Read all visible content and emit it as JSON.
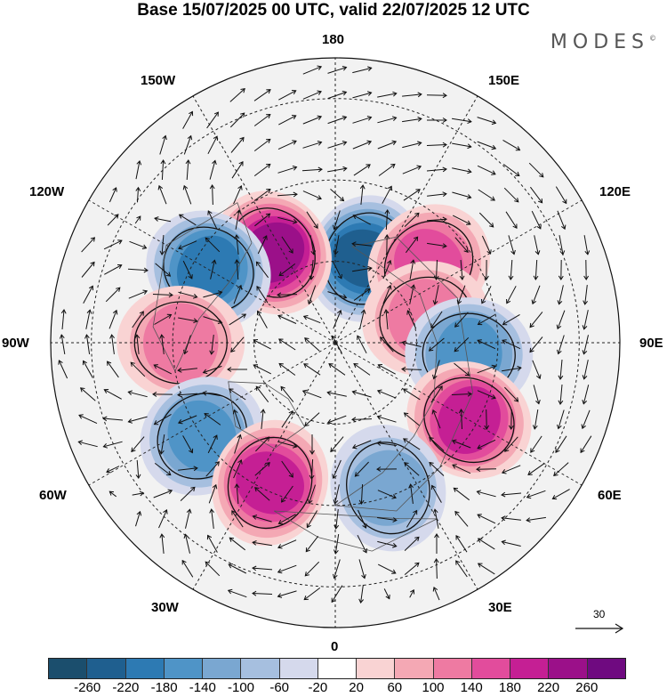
{
  "header": {
    "title": "Base 15/07/2025 00 UTC, valid 22/07/2025 12 UTC",
    "brand": "MODES"
  },
  "longitude_labels": {
    "top": "180",
    "bottom": "0",
    "left": "90W",
    "right": "90E",
    "upper_left_1": "150W",
    "upper_left_2": "120W",
    "upper_right_1": "150E",
    "upper_right_2": "120E",
    "lower_left_1": "60W",
    "lower_left_2": "30W",
    "lower_right_1": "60E",
    "lower_right_2": "30E"
  },
  "vector_scale": {
    "label": "30"
  },
  "colorbar": {
    "colors": [
      "#1b4e6d",
      "#1f5f8f",
      "#2d7ab3",
      "#4f94c7",
      "#7aa7d1",
      "#a6bfdf",
      "#d5d9ec",
      "#ffffff",
      "#f9d3d3",
      "#f4a8b4",
      "#ee7aa2",
      "#e24c9c",
      "#c51f94",
      "#9b1089",
      "#6f0a80"
    ],
    "ticks": [
      "-260",
      "-220",
      "-180",
      "-140",
      "-100",
      "-60",
      "-20",
      "20",
      "60",
      "100",
      "140",
      "180",
      "220",
      "260"
    ]
  },
  "anomalies": [
    {
      "lon": 160,
      "colat": 22,
      "value": -240
    },
    {
      "lon": -145,
      "colat": 27,
      "value": 240
    },
    {
      "lon": 130,
      "colat": 30,
      "value": 170
    },
    {
      "lon": -120,
      "colat": 36,
      "value": -200
    },
    {
      "lon": 105,
      "colat": 23,
      "value": 120
    },
    {
      "lon": 85,
      "colat": 33,
      "value": -160
    },
    {
      "lon": -90,
      "colat": 38,
      "value": 130
    },
    {
      "lon": 60,
      "colat": 38,
      "value": 200
    },
    {
      "lon": -55,
      "colat": 40,
      "value": -150
    },
    {
      "lon": -25,
      "colat": 38,
      "value": 190
    },
    {
      "lon": 20,
      "colat": 38,
      "value": -140
    }
  ]
}
